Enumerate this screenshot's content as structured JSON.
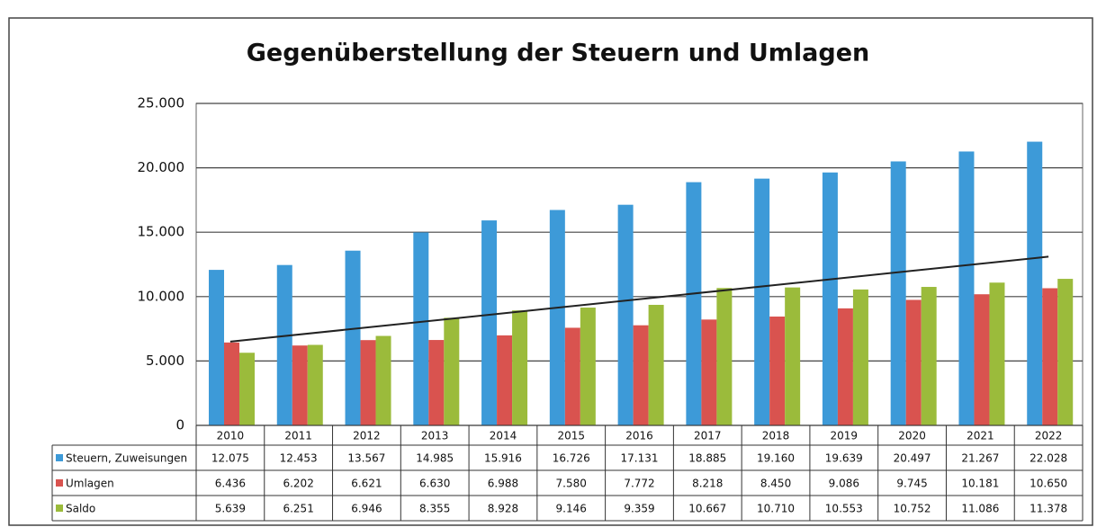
{
  "chart_data": {
    "type": "bar",
    "title": "Gegenüberstellung der Steuern und Umlagen",
    "categories": [
      "2010",
      "2011",
      "2012",
      "2013",
      "2014",
      "2015",
      "2016",
      "2017",
      "2018",
      "2019",
      "2020",
      "2021",
      "2022"
    ],
    "series": [
      {
        "name": "Steuern, Zuweisungen",
        "color": "#3d9ad8",
        "values": [
          12075,
          12453,
          13567,
          14985,
          15916,
          16726,
          17131,
          18885,
          19160,
          19639,
          20497,
          21267,
          22028
        ],
        "value_labels": [
          "12.075",
          "12.453",
          "13.567",
          "14.985",
          "15.916",
          "16.726",
          "17.131",
          "18.885",
          "19.160",
          "19.639",
          "20.497",
          "21.267",
          "22.028"
        ]
      },
      {
        "name": "Umlagen",
        "color": "#d9534f",
        "values": [
          6436,
          6202,
          6621,
          6630,
          6988,
          7580,
          7772,
          8218,
          8450,
          9086,
          9745,
          10181,
          10650
        ],
        "value_labels": [
          "6.436",
          "6.202",
          "6.621",
          "6.630",
          "6.988",
          "7.580",
          "7.772",
          "8.218",
          "8.450",
          "9.086",
          "9.745",
          "10.181",
          "10.650"
        ]
      },
      {
        "name": "Saldo",
        "color": "#9bbb3b",
        "values": [
          5639,
          6251,
          6946,
          8355,
          8928,
          9146,
          9359,
          10667,
          10710,
          10553,
          10752,
          11086,
          11378
        ],
        "value_labels": [
          "5.639",
          "6.251",
          "6.946",
          "8.355",
          "8.928",
          "9.146",
          "9.359",
          "10.667",
          "10.710",
          "10.553",
          "10.752",
          "11.086",
          "11.378"
        ]
      }
    ],
    "trendline": {
      "color": "#222222",
      "values": [
        6500,
        13100
      ]
    },
    "ylim": [
      0,
      25000
    ],
    "yticks": [
      0,
      {
        "value": 5000,
        "label": "5.000"
      },
      {
        "value": 10000,
        "label": "10.000"
      },
      {
        "value": 15000,
        "label": "15.000"
      },
      {
        "value": 20000,
        "label": "20.000"
      },
      {
        "value": 25000,
        "label": "25.000"
      }
    ],
    "grid": true
  }
}
